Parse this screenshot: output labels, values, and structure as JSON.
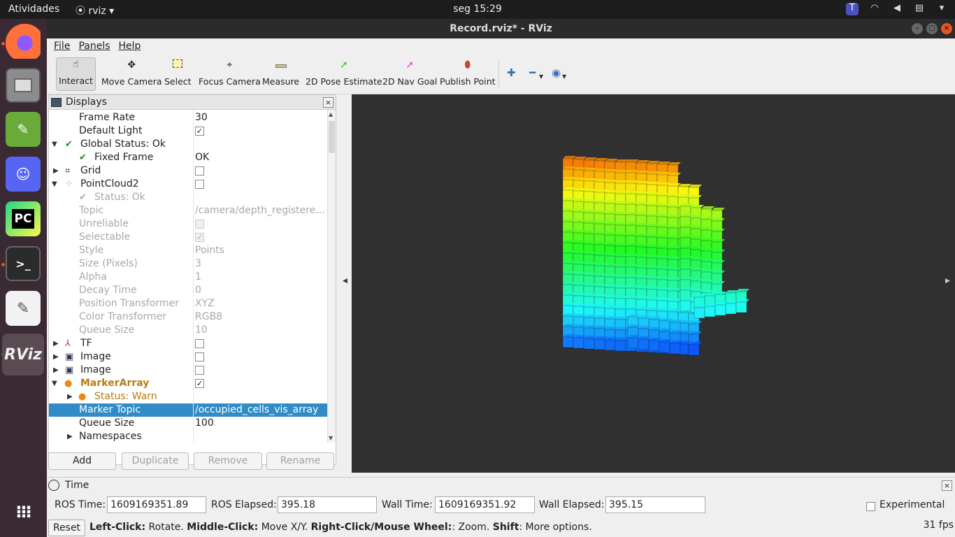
{
  "topbar": {
    "activities": "Atividades",
    "app_name": "rviz",
    "clock": "seg 15:29"
  },
  "dock": {
    "items": [
      "firefox-icon",
      "files-icon",
      "image-viewer-icon",
      "discord-icon",
      "pycharm-icon",
      "terminal-icon",
      "text-editor-icon",
      "rviz-icon",
      "app-grid-icon"
    ]
  },
  "window": {
    "title": "Record.rviz* - RViz"
  },
  "menu": {
    "file": "File",
    "panels": "Panels",
    "help": "Help"
  },
  "toolbar": {
    "interact": "Interact",
    "move_camera": "Move Camera",
    "select": "Select",
    "focus_camera": "Focus Camera",
    "measure": "Measure",
    "pose_estimate": "2D Pose Estimate",
    "nav_goal": "2D Nav Goal",
    "publish_point": "Publish Point"
  },
  "displays": {
    "title": "Displays",
    "rows": {
      "frame_rate": {
        "name": "Frame Rate",
        "value": "30"
      },
      "default_light": {
        "name": "Default Light",
        "value": "✓"
      },
      "global_status": {
        "name": "Global Status: Ok"
      },
      "fixed_frame": {
        "name": "Fixed Frame",
        "value": "OK"
      },
      "grid": {
        "name": "Grid",
        "value": ""
      },
      "pointcloud2": {
        "name": "PointCloud2",
        "value": ""
      },
      "pc_status": {
        "name": "Status: Ok"
      },
      "topic": {
        "name": "Topic",
        "value": "/camera/depth_registere..."
      },
      "unreliable": {
        "name": "Unreliable",
        "value": ""
      },
      "selectable": {
        "name": "Selectable",
        "value": "✓"
      },
      "style": {
        "name": "Style",
        "value": "Points"
      },
      "size": {
        "name": "Size (Pixels)",
        "value": "3"
      },
      "alpha": {
        "name": "Alpha",
        "value": "1"
      },
      "decay": {
        "name": "Decay Time",
        "value": "0"
      },
      "position_transformer": {
        "name": "Position Transformer",
        "value": "XYZ"
      },
      "color_transformer": {
        "name": "Color Transformer",
        "value": "RGB8"
      },
      "queue_size_pc": {
        "name": "Queue Size",
        "value": "10"
      },
      "tf": {
        "name": "TF",
        "value": ""
      },
      "image1": {
        "name": "Image",
        "value": ""
      },
      "image2": {
        "name": "Image",
        "value": ""
      },
      "marker_array": {
        "name": "MarkerArray",
        "value": "✓"
      },
      "ma_status": {
        "name": "Status: Warn"
      },
      "marker_topic": {
        "name": "Marker Topic",
        "value": "/occupied_cells_vis_array"
      },
      "queue_size_ma": {
        "name": "Queue Size",
        "value": "100"
      },
      "namespaces": {
        "name": "Namespaces"
      }
    },
    "buttons": {
      "add": "Add",
      "duplicate": "Duplicate",
      "remove": "Remove",
      "rename": "Rename"
    }
  },
  "time_panel": {
    "title": "Time",
    "ros_time_label": "ROS Time:",
    "ros_time": "1609169351.89",
    "ros_elapsed_label": "ROS Elapsed:",
    "ros_elapsed": "395.18",
    "wall_time_label": "Wall Time:",
    "wall_time": "1609169351.92",
    "wall_elapsed_label": "Wall Elapsed:",
    "wall_elapsed": "395.15",
    "experimental": "Experimental"
  },
  "status": {
    "reset": "Reset",
    "left_click": "Left-Click:",
    "left_click_text": " Rotate. ",
    "middle_click": "Middle-Click:",
    "middle_click_text": " Move X/Y. ",
    "right_click": "Right-Click/Mouse Wheel:",
    "right_click_text": ": Zoom. ",
    "shift": "Shift",
    "shift_text": ": More options.",
    "fps": "31 fps"
  },
  "colors": {
    "selection": "#308cc6",
    "warn": "#b77c14",
    "viewport_bg": "#303030",
    "accent": "#e95420"
  }
}
